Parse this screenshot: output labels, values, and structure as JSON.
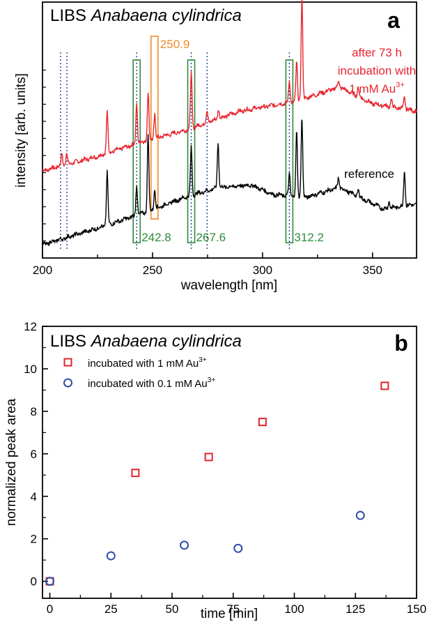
{
  "colors": {
    "treated": "#e8252f",
    "reference": "#000000",
    "au_line": "#2b3a9e",
    "au_box": "#2e8b3a",
    "marker_box": "#f08a24",
    "series_1mM": "#e0242c",
    "series_01mM": "#2f4aa6",
    "axis": "#000000"
  },
  "chart_data": [
    {
      "type": "line",
      "panel": {
        "label": "a",
        "title_prefix": "LIBS ",
        "title_species": "Anabaena cylindrica"
      },
      "xlabel": "wavelength [nm]",
      "ylabel": "intensity [arb. units]",
      "xlim": [
        200,
        370
      ],
      "ylim": [
        0,
        100
      ],
      "xticks": [
        200,
        250,
        300,
        350
      ],
      "series": [
        {
          "name": "after 73 h incubation with 1 mM Au³⁺",
          "legend_lines": [
            "after 73 h",
            "incubation with"
          ],
          "legend_last": {
            "prefix": "1 mM Au",
            "sup": "3+"
          },
          "baseline": [
            [
              200,
              33
            ],
            [
              225,
              39
            ],
            [
              245,
              45
            ],
            [
              265,
              50
            ],
            [
              290,
              58
            ],
            [
              315,
              62
            ],
            [
              335,
              68
            ],
            [
              350,
              61
            ],
            [
              370,
              58
            ]
          ],
          "peaks": [
            [
              208.8,
              5
            ],
            [
              211.0,
              5
            ],
            [
              229.4,
              18
            ],
            [
              242.8,
              17
            ],
            [
              248.0,
              20
            ],
            [
              251.0,
              10
            ],
            [
              267.6,
              23
            ],
            [
              274.8,
              5
            ],
            [
              280.0,
              4
            ],
            [
              312.2,
              9
            ],
            [
              315.5,
              16
            ],
            [
              317.9,
              43
            ],
            [
              334.5,
              3
            ],
            [
              343.5,
              4
            ],
            [
              358.5,
              3
            ],
            [
              364.5,
              5
            ]
          ]
        },
        {
          "name": "reference",
          "legend_lines": [
            "reference"
          ],
          "baseline": [
            [
              200,
              2
            ],
            [
              225,
              9
            ],
            [
              245,
              15
            ],
            [
              265,
              22
            ],
            [
              280,
              26
            ],
            [
              295,
              27
            ],
            [
              305,
              23
            ],
            [
              320,
              22
            ],
            [
              335,
              26
            ],
            [
              355,
              17
            ],
            [
              370,
              19
            ]
          ],
          "peaks": [
            [
              229.4,
              22
            ],
            [
              242.8,
              13
            ],
            [
              248.0,
              32
            ],
            [
              251.0,
              8
            ],
            [
              267.6,
              20
            ],
            [
              279.8,
              19
            ],
            [
              312.2,
              9
            ],
            [
              315.5,
              27
            ],
            [
              317.9,
              33
            ],
            [
              334.5,
              4
            ],
            [
              343.5,
              3
            ],
            [
              357.5,
              3
            ],
            [
              364.5,
              15
            ]
          ]
        }
      ],
      "au_lines": [
        208.2,
        211.1,
        242.8,
        267.6,
        274.8,
        312.2
      ],
      "marker_line": {
        "wavelength": 250.9,
        "label": "250.9"
      },
      "au_labels": [
        {
          "wavelength": 242.8,
          "label": "242.8"
        },
        {
          "wavelength": 267.6,
          "label": "267.6"
        },
        {
          "wavelength": 312.2,
          "label": "312.2"
        }
      ]
    },
    {
      "type": "scatter",
      "panel": {
        "label": "b",
        "title_prefix": "LIBS ",
        "title_species": "Anabaena cylindrica"
      },
      "xlabel": "time [min]",
      "ylabel": "normalized peak area",
      "xlim": [
        -3,
        150
      ],
      "ylim": [
        -0.8,
        12
      ],
      "xticks": [
        0,
        25,
        50,
        75,
        100,
        125,
        150
      ],
      "yticks": [
        0,
        2,
        4,
        6,
        8,
        10,
        12
      ],
      "series": [
        {
          "name": "incubated with 1 mM Au³⁺",
          "legend_prefix": "incubated with 1 mM Au",
          "legend_sup": "3+",
          "marker": "square",
          "x": [
            0,
            35,
            65,
            87,
            137
          ],
          "y": [
            0.0,
            5.1,
            5.85,
            7.5,
            9.2
          ]
        },
        {
          "name": "incubated with 0.1 mM Au³⁺",
          "legend_prefix": "incubated with 0.1 mM Au",
          "legend_sup": "3+",
          "marker": "circle",
          "x": [
            0,
            25,
            55,
            77,
            127
          ],
          "y": [
            0.0,
            1.2,
            1.7,
            1.55,
            3.1
          ]
        }
      ]
    }
  ]
}
